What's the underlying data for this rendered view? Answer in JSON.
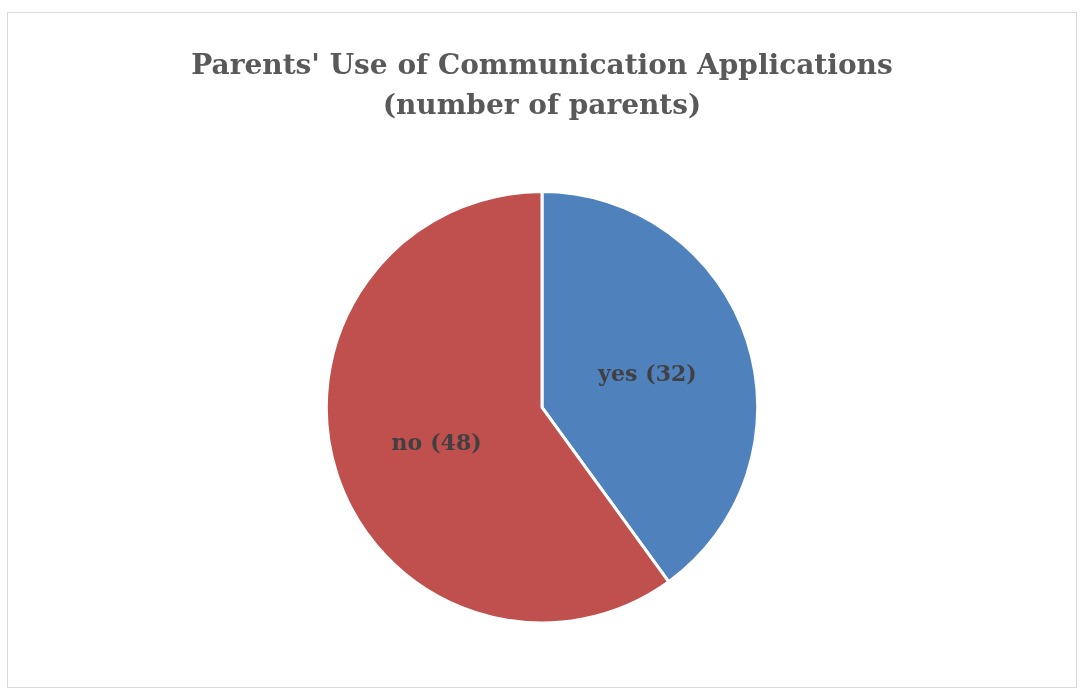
{
  "chart_data": {
    "type": "pie",
    "title": "Parents' Use of Communication Applications\n(number of parents)",
    "categories": [
      "yes",
      "no"
    ],
    "values": [
      32,
      48
    ],
    "colors": [
      "#4f81bd",
      "#c0504d"
    ],
    "value_labels": [
      "(32)",
      "(48)"
    ],
    "legend": false
  }
}
